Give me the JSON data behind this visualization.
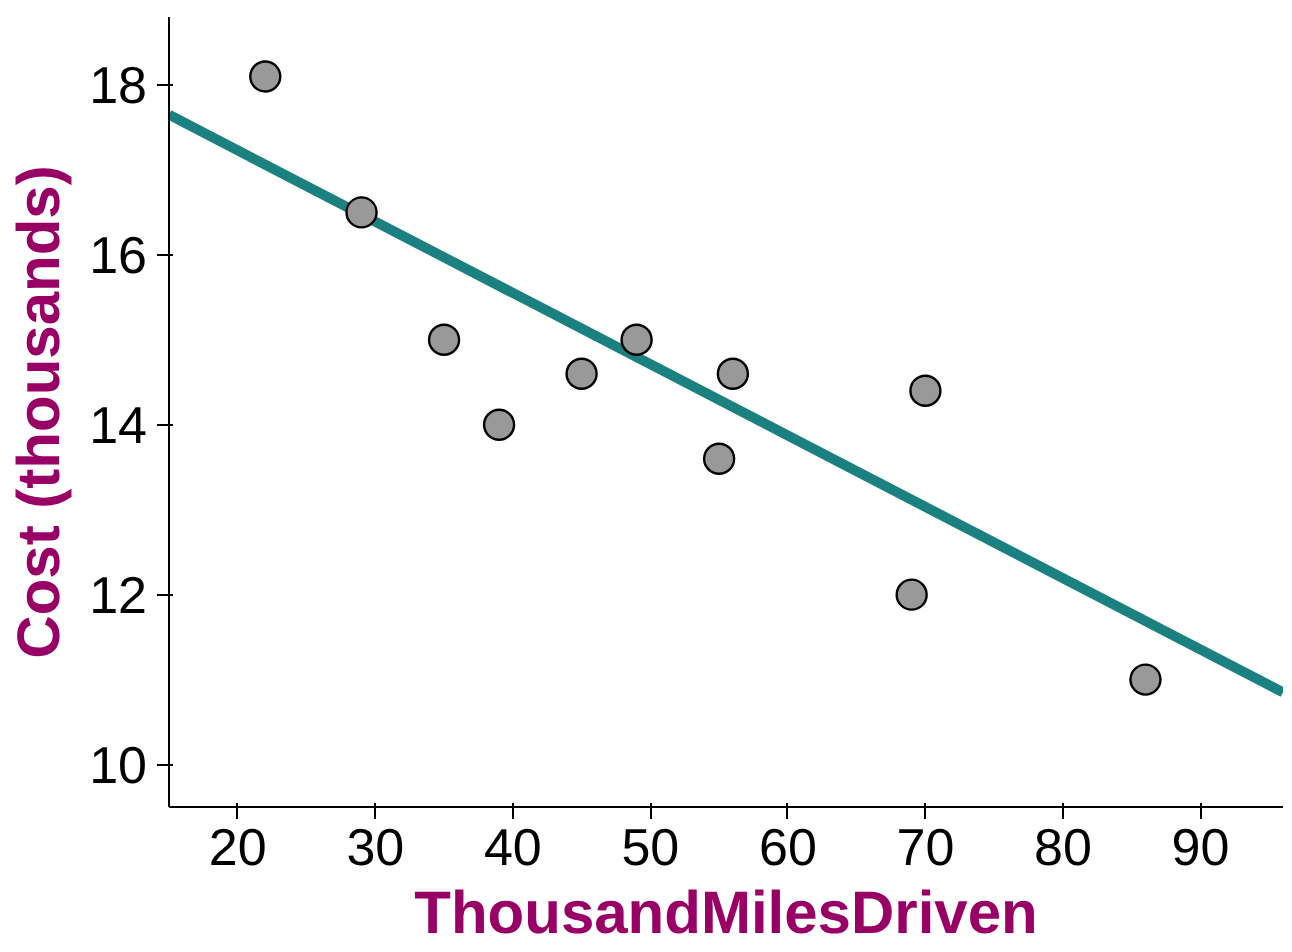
{
  "chart_data": {
    "type": "scatter",
    "xlabel": "ThousandMilesDriven",
    "ylabel": "Cost (thousands)",
    "xlim": [
      15,
      96
    ],
    "ylim": [
      9.5,
      18.8
    ],
    "xticks": [
      20,
      30,
      40,
      50,
      60,
      70,
      80,
      90
    ],
    "yticks": [
      10,
      12,
      14,
      16,
      18
    ],
    "grid": false,
    "series": [
      {
        "marker": "circle",
        "color": "#999999",
        "x": [
          22,
          29,
          35,
          39,
          45,
          49,
          55,
          56,
          69,
          70,
          86
        ],
        "values": [
          18.1,
          16.5,
          15.0,
          14.0,
          14.6,
          15.0,
          13.6,
          14.6,
          12.0,
          14.4,
          11.0
        ]
      },
      {
        "type": "line",
        "color": "#1a8080",
        "x": [
          15,
          96
        ],
        "values": [
          17.65,
          10.85
        ],
        "line_style": "solid"
      }
    ]
  }
}
